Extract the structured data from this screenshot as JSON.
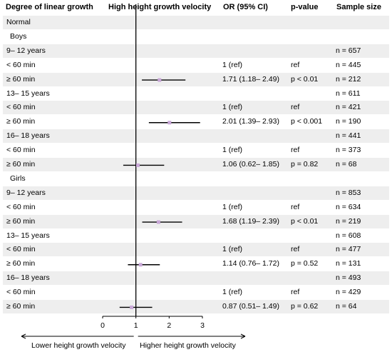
{
  "headers": {
    "col1": "Degree of linear growth",
    "col2": "High height growth velocity",
    "col3": "OR (95% CI)",
    "col4": "p-value",
    "col5": "Sample size"
  },
  "rows": [
    {
      "label": "Normal",
      "indent": 0
    },
    {
      "label": "Boys",
      "indent": 1
    },
    {
      "label": "9– 12 years",
      "indent": 0,
      "n": "n = 657"
    },
    {
      "label": "< 60 min",
      "indent": 0,
      "or": "1 (ref)",
      "p": "ref",
      "n": "n = 445"
    },
    {
      "label": "≥ 60 min",
      "indent": 0,
      "or": "1.71 (1.18– 2.49)",
      "p": "p < 0.01",
      "n": "n = 212",
      "ci": [
        1.71,
        1.18,
        2.49
      ]
    },
    {
      "label": "13– 15 years",
      "indent": 0,
      "n": "n = 611"
    },
    {
      "label": "< 60 min",
      "indent": 0,
      "or": "1 (ref)",
      "p": "ref",
      "n": "n = 421"
    },
    {
      "label": "≥ 60 min",
      "indent": 0,
      "or": "2.01 (1.39– 2.93)",
      "p": "p < 0.001",
      "n": "n = 190",
      "ci": [
        2.01,
        1.39,
        2.93
      ]
    },
    {
      "label": "16– 18 years",
      "indent": 0,
      "n": "n = 441"
    },
    {
      "label": "< 60 min",
      "indent": 0,
      "or": "1 (ref)",
      "p": "ref",
      "n": "n = 373"
    },
    {
      "label": "≥ 60 min",
      "indent": 0,
      "or": "1.06 (0.62– 1.85)",
      "p": "p = 0.82",
      "n": "n = 68",
      "ci": [
        1.06,
        0.62,
        1.85
      ]
    },
    {
      "label": "Girls",
      "indent": 1
    },
    {
      "label": "9– 12 years",
      "indent": 0,
      "n": "n = 853"
    },
    {
      "label": "< 60 min",
      "indent": 0,
      "or": "1 (ref)",
      "p": "ref",
      "n": "n = 634"
    },
    {
      "label": "≥ 60 min",
      "indent": 0,
      "or": "1.68 (1.19– 2.39)",
      "p": "p < 0.01",
      "n": "n = 219",
      "ci": [
        1.68,
        1.19,
        2.39
      ]
    },
    {
      "label": "13– 15 years",
      "indent": 0,
      "n": "n = 608"
    },
    {
      "label": "< 60 min",
      "indent": 0,
      "or": "1 (ref)",
      "p": "ref",
      "n": "n = 477"
    },
    {
      "label": "≥  60 min",
      "indent": 0,
      "or": "1.14 (0.76– 1.72)",
      "p": "p = 0.52",
      "n": "n = 131",
      "ci": [
        1.14,
        0.76,
        1.72
      ]
    },
    {
      "label": "16– 18 years",
      "indent": 0,
      "n": "n = 493"
    },
    {
      "label": "< 60 min",
      "indent": 0,
      "or": "1 (ref)",
      "p": "ref",
      "n": "n = 429"
    },
    {
      "label": "≥ 60 min",
      "indent": 0,
      "or": "0.87 (0.51– 1.49)",
      "p": "p = 0.62",
      "n": "n = 64",
      "ci": [
        0.87,
        0.51,
        1.49
      ]
    }
  ],
  "chart_data": {
    "type": "forest",
    "reference_line": 1,
    "xlim": [
      0,
      3
    ],
    "xticks": [
      "0",
      "1",
      "2",
      "3"
    ],
    "x_left_label": "Lower height growth velocity",
    "x_right_label": "Higher height growth velocity",
    "colors": {
      "line": "#000000",
      "point": "#c9a8d8",
      "ref_line": "#000000",
      "row_shade": "#eeeeee"
    }
  }
}
